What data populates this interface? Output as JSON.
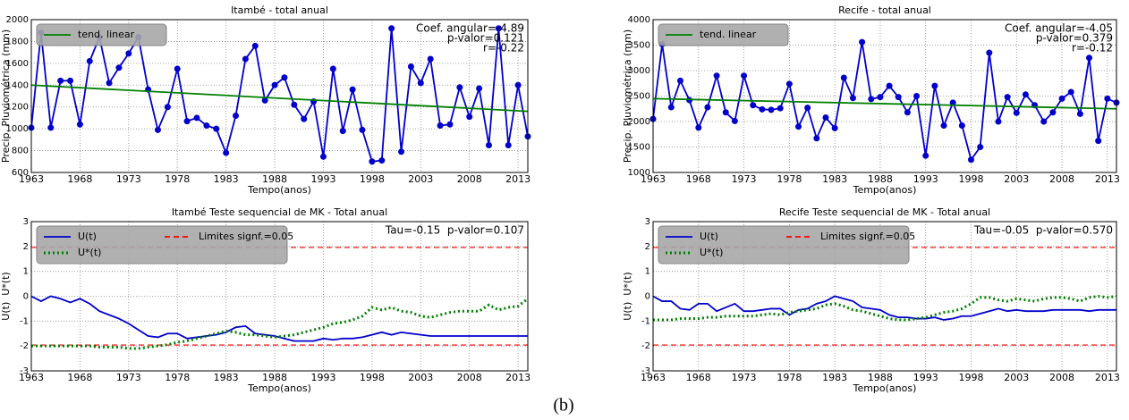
{
  "chart_data": [
    {
      "type": "line",
      "title": "Itambé - total anual",
      "xlabel": "Tempo(anos)",
      "ylabel": "Precip. Pluviométrica (mm)",
      "x": [
        1963,
        1964,
        1965,
        1966,
        1967,
        1968,
        1969,
        1970,
        1971,
        1972,
        1973,
        1974,
        1975,
        1976,
        1977,
        1978,
        1979,
        1980,
        1981,
        1982,
        1983,
        1984,
        1985,
        1986,
        1987,
        1988,
        1989,
        1990,
        1991,
        1992,
        1993,
        1994,
        1995,
        1996,
        1997,
        1998,
        1999,
        2000,
        2001,
        2002,
        2003,
        2004,
        2005,
        2006,
        2007,
        2008,
        2009,
        2010,
        2011,
        2012,
        2013,
        2014
      ],
      "xlim": [
        1963,
        2014
      ],
      "xticks": [
        1963,
        1968,
        1973,
        1978,
        1983,
        1988,
        1993,
        1998,
        2003,
        2008,
        2013
      ],
      "ylim": [
        600,
        2000
      ],
      "yticks": [
        600,
        800,
        1000,
        1200,
        1400,
        1600,
        1800,
        2000
      ],
      "grid": true,
      "legend": "upper left",
      "legend_ncol": 1,
      "series": [
        {
          "color": "#0000cc",
          "markers": true,
          "values": [
            1010,
            1880,
            1010,
            1440,
            1440,
            1040,
            1620,
            1840,
            1420,
            1560,
            1690,
            1840,
            1360,
            990,
            1200,
            1550,
            1070,
            1100,
            1030,
            1000,
            780,
            1120,
            1640,
            1760,
            1260,
            1400,
            1470,
            1220,
            1090,
            1250,
            745,
            1550,
            980,
            1360,
            990,
            700,
            710,
            1920,
            790,
            1570,
            1420,
            1640,
            1030,
            1040,
            1380,
            1110,
            1370,
            850,
            1920,
            850,
            1400,
            930
          ]
        },
        {
          "name": "tend. linear",
          "color": "#008000",
          "x": [
            1963,
            2014
          ],
          "values": [
            1400,
            1160
          ]
        }
      ],
      "annotations": [
        "Coef. angular=-4.89",
        "p-valor=0.121",
        "r=-0.22"
      ]
    },
    {
      "type": "line",
      "title": "Recife - total anual",
      "xlabel": "Tempo(anos)",
      "ylabel": "Precip. Pluviométrica (mm)",
      "x": [
        1963,
        1964,
        1965,
        1966,
        1967,
        1968,
        1969,
        1970,
        1971,
        1972,
        1973,
        1974,
        1975,
        1976,
        1977,
        1978,
        1979,
        1980,
        1981,
        1982,
        1983,
        1984,
        1985,
        1986,
        1987,
        1988,
        1989,
        1990,
        1991,
        1992,
        1993,
        1994,
        1995,
        1996,
        1997,
        1998,
        1999,
        2000,
        2001,
        2002,
        2003,
        2004,
        2005,
        2006,
        2007,
        2008,
        2009,
        2010,
        2011,
        2012,
        2013,
        2014
      ],
      "xlim": [
        1963,
        2014
      ],
      "xticks": [
        1963,
        1968,
        1973,
        1978,
        1983,
        1988,
        1993,
        1998,
        2003,
        2008,
        2013
      ],
      "ylim": [
        1000,
        4000
      ],
      "yticks": [
        1000,
        1500,
        2000,
        2500,
        3000,
        3500,
        4000
      ],
      "grid": true,
      "legend": "upper left",
      "legend_ncol": 1,
      "series": [
        {
          "color": "#0000cc",
          "markers": true,
          "values": [
            2050,
            3520,
            2280,
            2800,
            2420,
            1880,
            2280,
            2900,
            2180,
            2010,
            2900,
            2320,
            2240,
            2230,
            2260,
            2740,
            1900,
            2270,
            1670,
            2080,
            1870,
            2860,
            2460,
            3560,
            2440,
            2480,
            2700,
            2480,
            2180,
            2500,
            1330,
            2700,
            1920,
            2370,
            1920,
            1250,
            1500,
            3350,
            2000,
            2480,
            2170,
            2530,
            2320,
            2000,
            2180,
            2450,
            2580,
            2150,
            3250,
            1620,
            2450,
            2370
          ]
        },
        {
          "name": "tend. linear",
          "color": "#008000",
          "x": [
            1963,
            2014
          ],
          "values": [
            2450,
            2250
          ]
        }
      ],
      "annotations": [
        "Coef. angular=-4.05",
        "p-valor=0.379",
        "r=-0.12"
      ]
    },
    {
      "type": "line",
      "title": "Itambé Teste sequencial de MK - Total anual",
      "xlabel": "Tempo(anos)",
      "ylabel": "U(t)  U*(t)",
      "x": [
        1963,
        1964,
        1965,
        1966,
        1967,
        1968,
        1969,
        1970,
        1971,
        1972,
        1973,
        1974,
        1975,
        1976,
        1977,
        1978,
        1979,
        1980,
        1981,
        1982,
        1983,
        1984,
        1985,
        1986,
        1987,
        1988,
        1989,
        1990,
        1991,
        1992,
        1993,
        1994,
        1995,
        1996,
        1997,
        1998,
        1999,
        2000,
        2001,
        2002,
        2003,
        2004,
        2005,
        2006,
        2007,
        2008,
        2009,
        2010,
        2011,
        2012,
        2013,
        2014
      ],
      "xlim": [
        1963,
        2014
      ],
      "xticks": [
        1963,
        1968,
        1973,
        1978,
        1983,
        1988,
        1993,
        1998,
        2003,
        2008,
        2013
      ],
      "ylim": [
        -3,
        3
      ],
      "yticks": [
        -3,
        -2,
        -1,
        0,
        1,
        2,
        3
      ],
      "grid": true,
      "legend": "upper left",
      "legend_ncol": 2,
      "series": [
        {
          "name": "U(t)",
          "color": "#0000cc",
          "values": [
            0,
            -0.2,
            0,
            -0.1,
            -0.25,
            -0.1,
            -0.3,
            -0.6,
            -0.75,
            -0.9,
            -1.1,
            -1.35,
            -1.6,
            -1.65,
            -1.5,
            -1.5,
            -1.7,
            -1.65,
            -1.6,
            -1.55,
            -1.45,
            -1.25,
            -1.2,
            -1.5,
            -1.55,
            -1.6,
            -1.7,
            -1.8,
            -1.8,
            -1.8,
            -1.7,
            -1.75,
            -1.7,
            -1.7,
            -1.65,
            -1.55,
            -1.45,
            -1.55,
            -1.45,
            -1.5,
            -1.55,
            -1.6,
            -1.6,
            -1.6,
            -1.6,
            -1.6,
            -1.6,
            -1.6,
            -1.6,
            -1.6,
            -1.6,
            -1.6
          ]
        },
        {
          "name": "U*(t)",
          "color": "#008000",
          "dash": "dot",
          "values": [
            -2,
            -2,
            -2,
            -2,
            -2,
            -2,
            -2,
            -2.05,
            -2.05,
            -2.05,
            -2.1,
            -2.1,
            -2.05,
            -2,
            -1.95,
            -1.85,
            -1.8,
            -1.7,
            -1.6,
            -1.5,
            -1.4,
            -1.45,
            -1.55,
            -1.55,
            -1.6,
            -1.65,
            -1.6,
            -1.55,
            -1.45,
            -1.35,
            -1.25,
            -1.1,
            -1.05,
            -0.95,
            -0.8,
            -0.45,
            -0.55,
            -0.45,
            -0.6,
            -0.65,
            -0.8,
            -0.85,
            -0.75,
            -0.65,
            -0.6,
            -0.6,
            -0.6,
            -0.35,
            -0.55,
            -0.45,
            -0.4,
            -0.1
          ]
        }
      ],
      "hlines": {
        "name": "Limites signf.=0.05",
        "color": "#ff0000",
        "values": [
          1.96,
          -1.96
        ]
      },
      "annotations": [
        "Tau=-0.15  p-valor=0.107"
      ]
    },
    {
      "type": "line",
      "title": "Recife Teste sequencial de MK - Total anual",
      "xlabel": "Tempo(anos)",
      "ylabel": "U(t)  U*(t)",
      "x": [
        1963,
        1964,
        1965,
        1966,
        1967,
        1968,
        1969,
        1970,
        1971,
        1972,
        1973,
        1974,
        1975,
        1976,
        1977,
        1978,
        1979,
        1980,
        1981,
        1982,
        1983,
        1984,
        1985,
        1986,
        1987,
        1988,
        1989,
        1990,
        1991,
        1992,
        1993,
        1994,
        1995,
        1996,
        1997,
        1998,
        1999,
        2000,
        2001,
        2002,
        2003,
        2004,
        2005,
        2006,
        2007,
        2008,
        2009,
        2010,
        2011,
        2012,
        2013,
        2014
      ],
      "xlim": [
        1963,
        2014
      ],
      "xticks": [
        1963,
        1968,
        1973,
        1978,
        1983,
        1988,
        1993,
        1998,
        2003,
        2008,
        2013
      ],
      "ylim": [
        -3,
        3
      ],
      "yticks": [
        -3,
        -2,
        -1,
        0,
        1,
        2,
        3
      ],
      "grid": true,
      "legend": "upper left",
      "legend_ncol": 2,
      "series": [
        {
          "name": "U(t)",
          "color": "#0000cc",
          "values": [
            0,
            -0.2,
            -0.2,
            -0.5,
            -0.55,
            -0.3,
            -0.3,
            -0.6,
            -0.45,
            -0.3,
            -0.6,
            -0.6,
            -0.55,
            -0.5,
            -0.5,
            -0.75,
            -0.55,
            -0.5,
            -0.3,
            -0.2,
            0,
            -0.1,
            -0.2,
            -0.45,
            -0.5,
            -0.55,
            -0.75,
            -0.85,
            -0.85,
            -0.9,
            -0.9,
            -0.85,
            -0.95,
            -0.9,
            -0.8,
            -0.8,
            -0.7,
            -0.6,
            -0.5,
            -0.6,
            -0.55,
            -0.6,
            -0.6,
            -0.6,
            -0.55,
            -0.55,
            -0.55,
            -0.55,
            -0.6,
            -0.55,
            -0.55,
            -0.55
          ]
        },
        {
          "name": "U*(t)",
          "color": "#008000",
          "dash": "dot",
          "values": [
            -0.95,
            -0.95,
            -0.95,
            -0.9,
            -0.9,
            -0.9,
            -0.85,
            -0.85,
            -0.8,
            -0.8,
            -0.8,
            -0.8,
            -0.75,
            -0.7,
            -0.75,
            -0.65,
            -0.6,
            -0.55,
            -0.5,
            -0.35,
            -0.3,
            -0.4,
            -0.55,
            -0.6,
            -0.7,
            -0.8,
            -0.9,
            -0.95,
            -0.95,
            -0.9,
            -0.85,
            -0.75,
            -0.65,
            -0.6,
            -0.5,
            -0.3,
            -0.05,
            -0.05,
            -0.15,
            -0.2,
            -0.1,
            -0.15,
            -0.2,
            -0.1,
            -0.05,
            -0.05,
            -0.1,
            -0.2,
            -0.05,
            0,
            -0.05,
            0
          ]
        }
      ],
      "hlines": {
        "name": "Limites signf.=0.05",
        "color": "#ff0000",
        "values": [
          1.96,
          -1.96
        ]
      },
      "annotations": [
        "Tau=-0.05  p-valor=0.570"
      ]
    }
  ],
  "figure_label": "(b)"
}
